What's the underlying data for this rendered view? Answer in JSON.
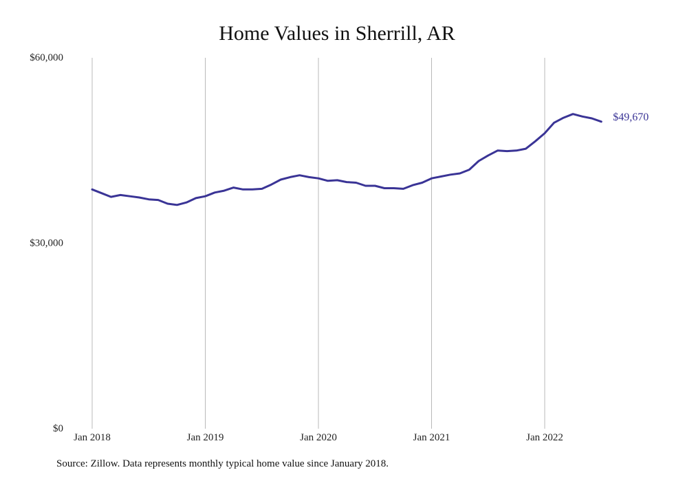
{
  "chart_data": {
    "type": "line",
    "title": "Home Values in Sherrill, AR",
    "xlabel": "",
    "ylabel": "",
    "x_ticks": [
      "Jan 2018",
      "Jan 2019",
      "Jan 2020",
      "Jan 2021",
      "Jan 2022"
    ],
    "y_ticks": [
      "$0",
      "$30,000",
      "$60,000"
    ],
    "ylim": [
      0,
      60000
    ],
    "grid": "vertical",
    "line_color": "#3a3496",
    "end_label": "$49,670",
    "series": [
      {
        "x": [
          "2018-01",
          "2018-02",
          "2018-03",
          "2018-04",
          "2018-05",
          "2018-06",
          "2018-07",
          "2018-08",
          "2018-09",
          "2018-10",
          "2018-11",
          "2018-12",
          "2019-01",
          "2019-02",
          "2019-03",
          "2019-04",
          "2019-05",
          "2019-06",
          "2019-07",
          "2019-08",
          "2019-09",
          "2019-10",
          "2019-11",
          "2019-12",
          "2020-01",
          "2020-02",
          "2020-03",
          "2020-04",
          "2020-05",
          "2020-06",
          "2020-07",
          "2020-08",
          "2020-09",
          "2020-10",
          "2020-11",
          "2020-12",
          "2021-01",
          "2021-02",
          "2021-03",
          "2021-04",
          "2021-05",
          "2021-06",
          "2021-07",
          "2021-08",
          "2021-09",
          "2021-10",
          "2021-11",
          "2021-12",
          "2022-01",
          "2022-02",
          "2022-03",
          "2022-04",
          "2022-05",
          "2022-06",
          "2022-07"
        ],
        "values": [
          38700,
          38100,
          37500,
          37800,
          37600,
          37400,
          37100,
          37000,
          36400,
          36200,
          36600,
          37300,
          37600,
          38200,
          38500,
          39000,
          38700,
          38700,
          38800,
          39500,
          40300,
          40700,
          41000,
          40700,
          40500,
          40100,
          40200,
          39900,
          39800,
          39300,
          39300,
          38900,
          38900,
          38800,
          39400,
          39800,
          40500,
          40800,
          41100,
          41300,
          41900,
          43300,
          44200,
          45000,
          44900,
          45000,
          45300,
          46500,
          47800,
          49500,
          50300,
          50900,
          50500,
          50200,
          49670
        ]
      }
    ],
    "source": "Source: Zillow. Data represents monthly typical home value since January 2018."
  }
}
